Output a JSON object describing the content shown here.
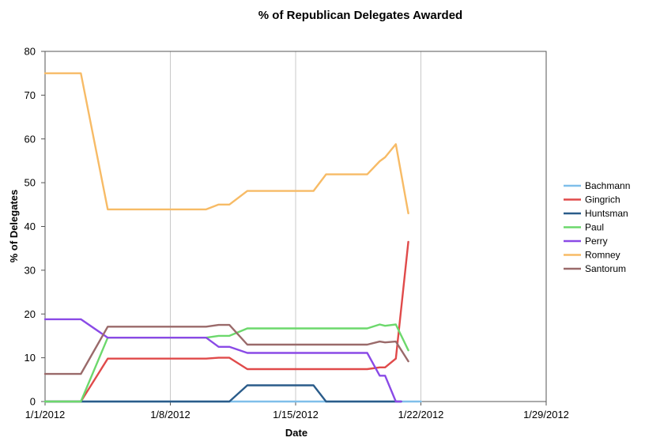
{
  "chart_data": {
    "type": "line",
    "title": "% of Republican Delegates Awarded",
    "xlabel": "Date",
    "ylabel": "% of Delegates",
    "xlim": [
      "2012-01-01",
      "2012-01-29"
    ],
    "ylim": [
      0,
      80
    ],
    "x_ticks": [
      "1/1/2012",
      "1/8/2012",
      "1/15/2012",
      "1/22/2012",
      "1/29/2012"
    ],
    "y_ticks": [
      0,
      10,
      20,
      30,
      40,
      50,
      60,
      70,
      80
    ],
    "grid": {
      "vertical": true,
      "horizontal": false
    },
    "legend_position": "right",
    "series": [
      {
        "name": "Bachmann",
        "color": "#7fbfea",
        "points": [
          [
            "2012-01-01",
            0
          ],
          [
            "2012-01-22",
            0
          ]
        ]
      },
      {
        "name": "Gingrich",
        "color": "#e04a4a",
        "points": [
          [
            "2012-01-01",
            0
          ],
          [
            "2012-01-03",
            0
          ],
          [
            "2012-01-04.5",
            9.8
          ],
          [
            "2012-01-10",
            9.8
          ],
          [
            "2012-01-10.7",
            10
          ],
          [
            "2012-01-11.3",
            10
          ],
          [
            "2012-01-12.3",
            7.4
          ],
          [
            "2012-01-19",
            7.4
          ],
          [
            "2012-01-19.7",
            7.8
          ],
          [
            "2012-01-20",
            7.8
          ],
          [
            "2012-01-20.6",
            9.8
          ],
          [
            "2012-01-21.3",
            36.5
          ]
        ]
      },
      {
        "name": "Huntsman",
        "color": "#2a5c8a",
        "points": [
          [
            "2012-01-01",
            0
          ],
          [
            "2012-01-11.3",
            0
          ],
          [
            "2012-01-12.3",
            3.7
          ],
          [
            "2012-01-16",
            3.7
          ],
          [
            "2012-01-16.7",
            0
          ],
          [
            "2012-01-20.9",
            0
          ]
        ]
      },
      {
        "name": "Paul",
        "color": "#6cd86c",
        "points": [
          [
            "2012-01-01",
            0
          ],
          [
            "2012-01-03",
            0
          ],
          [
            "2012-01-04.5",
            14.6
          ],
          [
            "2012-01-10",
            14.6
          ],
          [
            "2012-01-10.7",
            15
          ],
          [
            "2012-01-11.3",
            15
          ],
          [
            "2012-01-12.3",
            16.7
          ],
          [
            "2012-01-19",
            16.7
          ],
          [
            "2012-01-19.7",
            17.6
          ],
          [
            "2012-01-20",
            17.3
          ],
          [
            "2012-01-20.6",
            17.6
          ],
          [
            "2012-01-21.3",
            11.7
          ]
        ]
      },
      {
        "name": "Perry",
        "color": "#8a4ae6",
        "points": [
          [
            "2012-01-01",
            18.8
          ],
          [
            "2012-01-03",
            18.8
          ],
          [
            "2012-01-04.5",
            14.6
          ],
          [
            "2012-01-10",
            14.6
          ],
          [
            "2012-01-10.7",
            12.5
          ],
          [
            "2012-01-11.3",
            12.5
          ],
          [
            "2012-01-12.3",
            11.1
          ],
          [
            "2012-01-19",
            11.1
          ],
          [
            "2012-01-19.7",
            5.9
          ],
          [
            "2012-01-20",
            5.9
          ],
          [
            "2012-01-20.6",
            0
          ],
          [
            "2012-01-20.9",
            0
          ]
        ]
      },
      {
        "name": "Romney",
        "color": "#f7bb66",
        "points": [
          [
            "2012-01-01",
            75
          ],
          [
            "2012-01-03",
            75
          ],
          [
            "2012-01-04.5",
            43.9
          ],
          [
            "2012-01-10",
            43.9
          ],
          [
            "2012-01-10.7",
            45
          ],
          [
            "2012-01-11.3",
            45
          ],
          [
            "2012-01-12.3",
            48.1
          ],
          [
            "2012-01-16",
            48.1
          ],
          [
            "2012-01-16.7",
            51.9
          ],
          [
            "2012-01-19",
            51.9
          ],
          [
            "2012-01-19.7",
            54.9
          ],
          [
            "2012-01-20",
            55.8
          ],
          [
            "2012-01-20.6",
            58.8
          ],
          [
            "2012-01-21.3",
            43
          ]
        ]
      },
      {
        "name": "Santorum",
        "color": "#9a6a6a",
        "points": [
          [
            "2012-01-01",
            6.3
          ],
          [
            "2012-01-03",
            6.3
          ],
          [
            "2012-01-04.5",
            17.1
          ],
          [
            "2012-01-10",
            17.1
          ],
          [
            "2012-01-10.7",
            17.5
          ],
          [
            "2012-01-11.3",
            17.5
          ],
          [
            "2012-01-12.3",
            13
          ],
          [
            "2012-01-19",
            13
          ],
          [
            "2012-01-19.7",
            13.7
          ],
          [
            "2012-01-20",
            13.5
          ],
          [
            "2012-01-20.6",
            13.7
          ],
          [
            "2012-01-21.3",
            9.2
          ]
        ]
      }
    ]
  }
}
